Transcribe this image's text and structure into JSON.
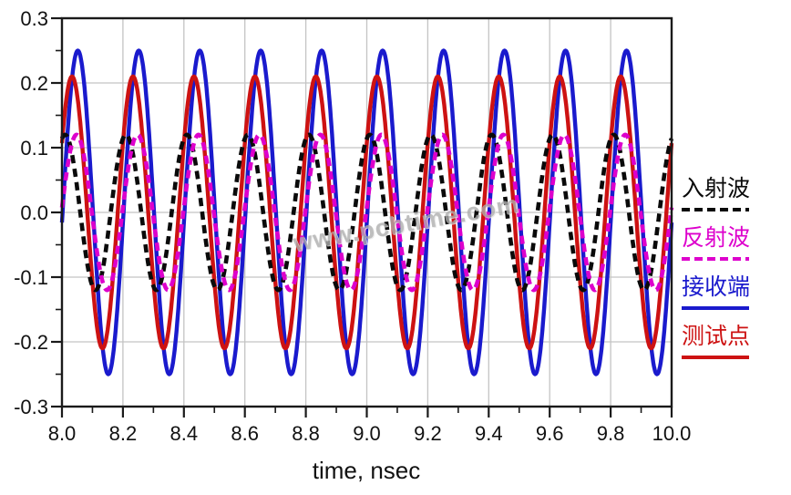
{
  "watermark": "www.pcbtime.com",
  "chart_data": {
    "type": "line",
    "title": "",
    "xlabel": "time, nsec",
    "ylabel": "",
    "xlim": [
      8.0,
      10.0
    ],
    "ylim": [
      -0.3,
      0.3
    ],
    "x_major_ticks": [
      8.0,
      8.2,
      8.4,
      8.6,
      8.8,
      9.0,
      9.2,
      9.4,
      9.6,
      9.8,
      10.0
    ],
    "x_tick_labels": [
      "8.0",
      "8.2",
      "8.4",
      "8.6",
      "8.8",
      "9.0",
      "9.2",
      "9.4",
      "9.6",
      "9.8",
      "10.0"
    ],
    "x_minor_step": 0.1,
    "y_major_ticks": [
      -0.3,
      -0.2,
      -0.1,
      0.0,
      0.1,
      0.2,
      0.3
    ],
    "y_tick_labels": [
      "-0.3",
      "-0.2",
      "-0.1",
      "0.0",
      "0.1",
      "0.2",
      "0.3"
    ],
    "y_minor_step": 0.05,
    "grid": true,
    "legend_position": "right-outside",
    "waveform_model": "y(t) = amplitude * cos(2*pi*(t - peak_time_ns)/period_ns), 10 cycles visible across 8-10 nsec",
    "series": [
      {
        "name": "入射波",
        "style": "dashed",
        "color": "#0a0a0a",
        "amplitude": 0.12,
        "period_ns": 0.2,
        "peak_time_ns": 8.01
      },
      {
        "name": "反射波",
        "style": "dashed",
        "color": "#dd00cc",
        "amplitude": 0.12,
        "period_ns": 0.2,
        "peak_time_ns": 8.048
      },
      {
        "name": "接收端",
        "style": "solid",
        "color": "#1a1acd",
        "amplitude": 0.25,
        "period_ns": 0.2,
        "peak_time_ns": 8.052
      },
      {
        "name": "测试点",
        "style": "solid",
        "color": "#cd1212",
        "amplitude": 0.21,
        "period_ns": 0.2,
        "peak_time_ns": 8.033
      }
    ],
    "colors": {
      "grid": "#c4c4c4",
      "frame": "#1a1a1a",
      "tick_text": "#111111",
      "watermark": "#aeaeae"
    }
  }
}
